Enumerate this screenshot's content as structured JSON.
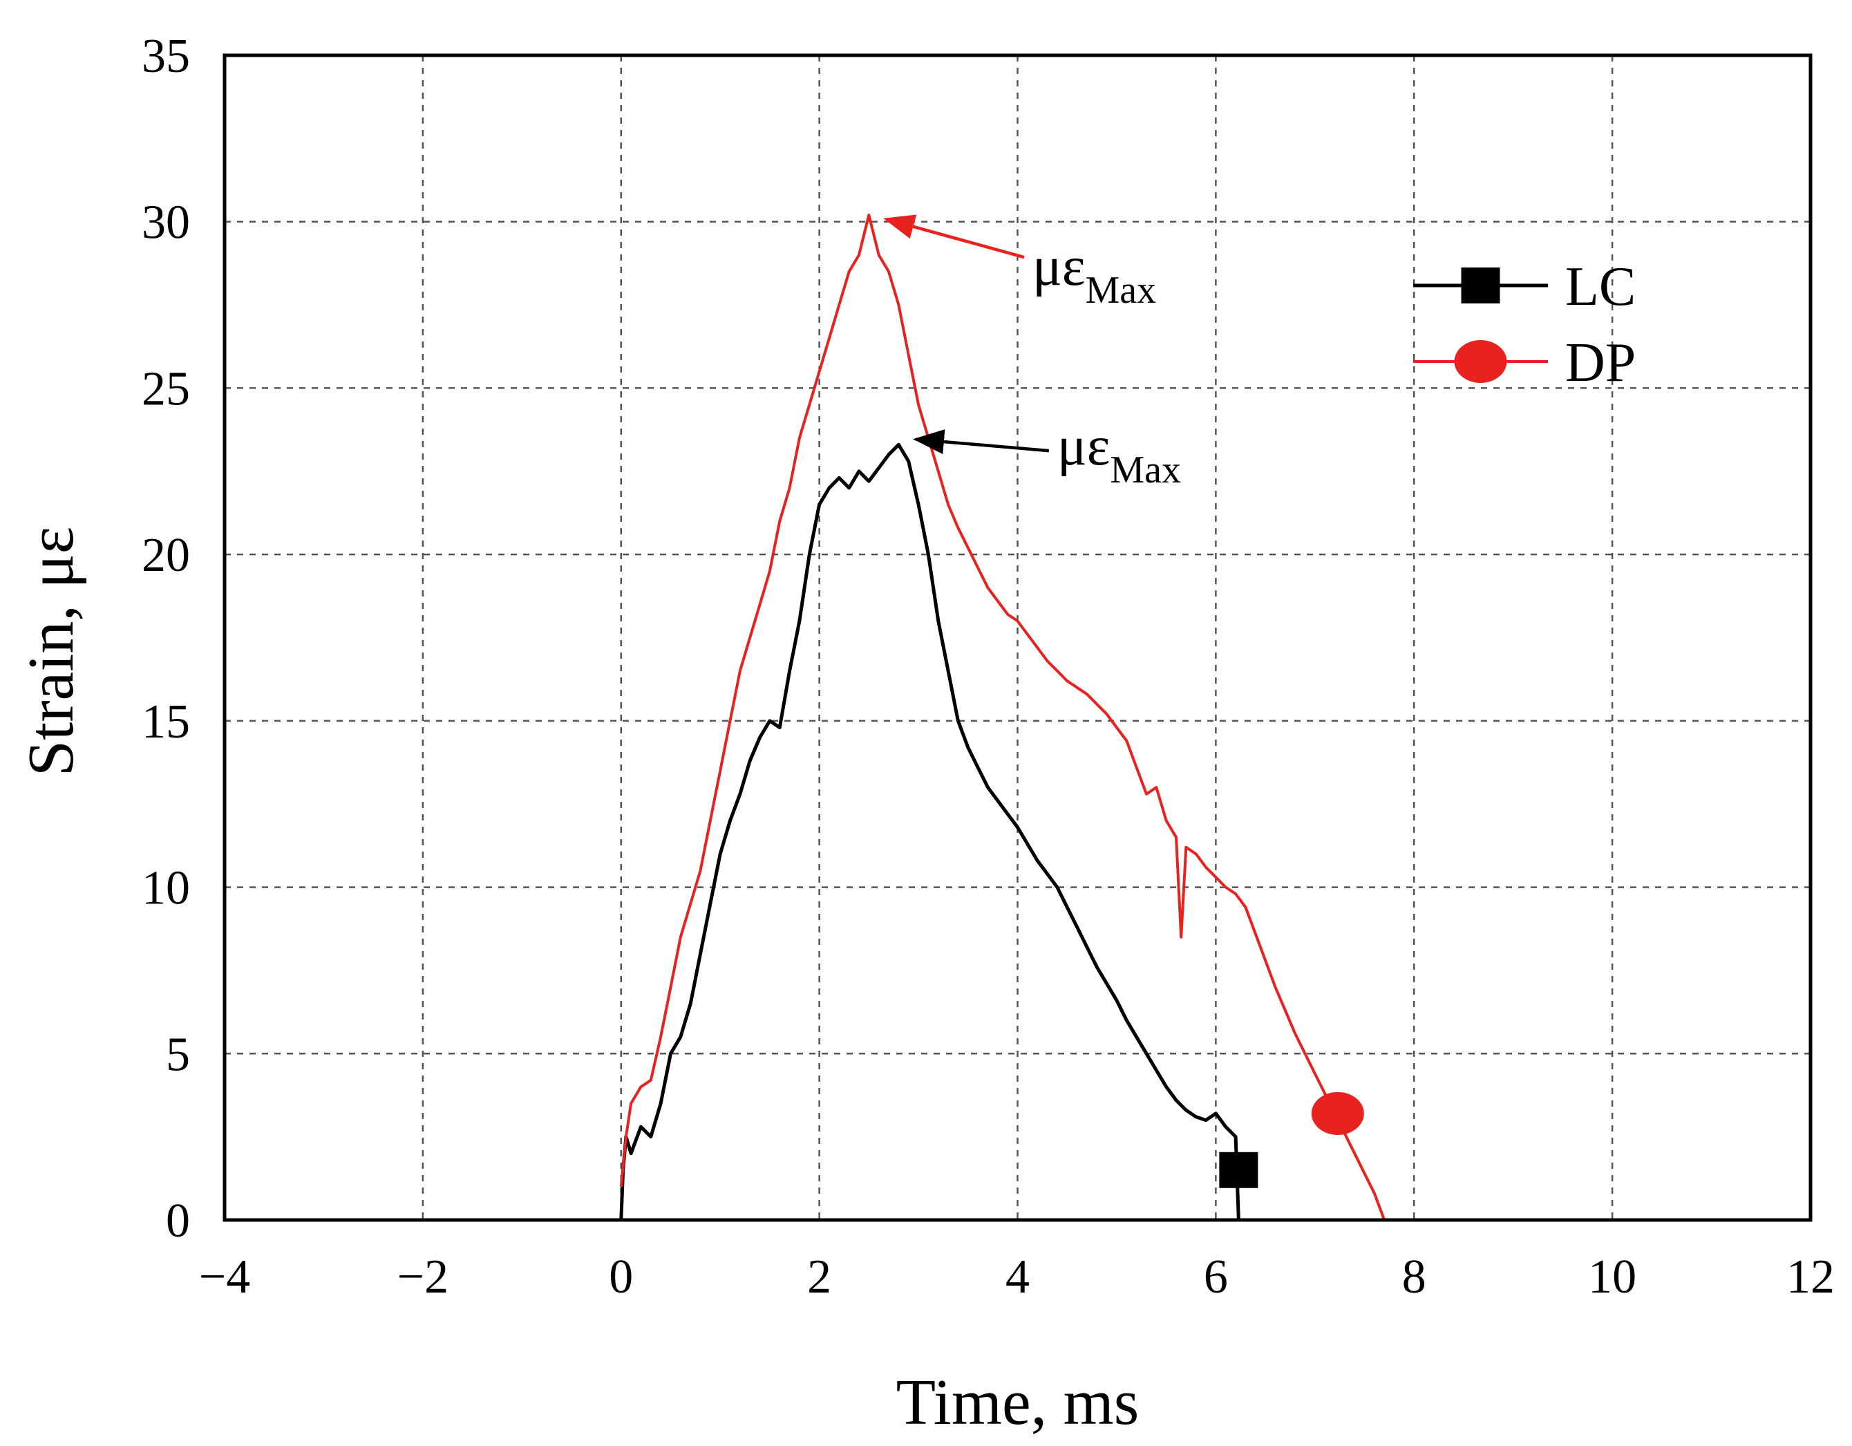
{
  "chart_data": {
    "type": "line",
    "title": "",
    "xlabel": "Time, ms",
    "ylabel": "Strain, με",
    "xlim": [
      -4,
      12
    ],
    "ylim": [
      0,
      35
    ],
    "xticks": [
      -4,
      -2,
      0,
      2,
      4,
      6,
      8,
      10,
      12
    ],
    "yticks": [
      0,
      5,
      10,
      15,
      20,
      25,
      30,
      35
    ],
    "xtick_labels": [
      "−4",
      "−2",
      "0",
      "2",
      "4",
      "6",
      "8",
      "10",
      "12"
    ],
    "ytick_labels": [
      "0",
      "5",
      "10",
      "15",
      "20",
      "25",
      "30",
      "35"
    ],
    "grid": true,
    "legend_position": "top-right",
    "series": [
      {
        "name": "LC",
        "color": "#000000",
        "marker": "square",
        "marker_point": [
          6.23,
          1.5
        ],
        "x": [
          0.0,
          0.02,
          0.05,
          0.1,
          0.2,
          0.3,
          0.4,
          0.5,
          0.6,
          0.7,
          0.8,
          0.9,
          1.0,
          1.1,
          1.2,
          1.3,
          1.4,
          1.5,
          1.6,
          1.7,
          1.8,
          1.9,
          2.0,
          2.1,
          2.2,
          2.3,
          2.4,
          2.5,
          2.6,
          2.7,
          2.8,
          2.9,
          3.0,
          3.1,
          3.2,
          3.3,
          3.4,
          3.5,
          3.6,
          3.7,
          3.8,
          3.9,
          4.0,
          4.1,
          4.2,
          4.3,
          4.4,
          4.5,
          4.6,
          4.7,
          4.8,
          4.9,
          5.0,
          5.1,
          5.2,
          5.3,
          5.4,
          5.5,
          5.6,
          5.7,
          5.8,
          5.9,
          6.0,
          6.1,
          6.2,
          6.23
        ],
        "y": [
          0.0,
          1.5,
          2.5,
          2.0,
          2.8,
          2.5,
          3.5,
          5.0,
          5.5,
          6.5,
          8.0,
          9.5,
          11.0,
          12.0,
          12.8,
          13.8,
          14.5,
          15.0,
          14.8,
          16.5,
          18.0,
          20.0,
          21.5,
          22.0,
          22.3,
          22.0,
          22.5,
          22.2,
          22.6,
          23.0,
          23.3,
          22.8,
          21.5,
          20.0,
          18.0,
          16.5,
          15.0,
          14.2,
          13.6,
          13.0,
          12.6,
          12.2,
          11.8,
          11.3,
          10.8,
          10.4,
          10.0,
          9.4,
          8.8,
          8.2,
          7.6,
          7.1,
          6.6,
          6.0,
          5.5,
          5.0,
          4.5,
          4.0,
          3.6,
          3.3,
          3.1,
          3.0,
          3.2,
          2.8,
          2.5,
          0.0
        ]
      },
      {
        "name": "DP",
        "color": "#e8221e",
        "marker": "circle",
        "marker_point": [
          7.23,
          3.2
        ],
        "x": [
          0.0,
          0.05,
          0.1,
          0.2,
          0.3,
          0.4,
          0.5,
          0.6,
          0.7,
          0.8,
          0.9,
          1.0,
          1.1,
          1.2,
          1.3,
          1.4,
          1.5,
          1.6,
          1.7,
          1.8,
          1.9,
          2.0,
          2.1,
          2.2,
          2.3,
          2.4,
          2.5,
          2.6,
          2.7,
          2.8,
          2.9,
          3.0,
          3.1,
          3.2,
          3.3,
          3.4,
          3.5,
          3.6,
          3.7,
          3.8,
          3.9,
          4.0,
          4.1,
          4.2,
          4.3,
          4.4,
          4.5,
          4.6,
          4.7,
          4.8,
          4.9,
          5.0,
          5.1,
          5.2,
          5.3,
          5.4,
          5.5,
          5.6,
          5.65,
          5.7,
          5.8,
          5.9,
          6.0,
          6.1,
          6.2,
          6.3,
          6.4,
          6.5,
          6.6,
          6.7,
          6.8,
          6.9,
          7.0,
          7.1,
          7.2,
          7.3,
          7.4,
          7.5,
          7.6,
          7.7
        ],
        "y": [
          1.0,
          2.5,
          3.5,
          4.0,
          4.2,
          5.5,
          7.0,
          8.5,
          9.5,
          10.5,
          12.0,
          13.5,
          15.0,
          16.5,
          17.5,
          18.5,
          19.5,
          21.0,
          22.0,
          23.5,
          24.5,
          25.5,
          26.5,
          27.5,
          28.5,
          29.0,
          30.2,
          29.0,
          28.5,
          27.5,
          26.0,
          24.5,
          23.5,
          22.5,
          21.5,
          20.8,
          20.2,
          19.6,
          19.0,
          18.6,
          18.2,
          18.0,
          17.6,
          17.2,
          16.8,
          16.5,
          16.2,
          16.0,
          15.8,
          15.5,
          15.2,
          14.8,
          14.4,
          13.6,
          12.8,
          13.0,
          12.0,
          11.5,
          8.5,
          11.2,
          11.0,
          10.6,
          10.3,
          10.0,
          9.8,
          9.4,
          8.6,
          7.8,
          7.0,
          6.3,
          5.6,
          5.0,
          4.4,
          3.8,
          3.2,
          2.6,
          2.0,
          1.4,
          0.8,
          0.0
        ]
      }
    ],
    "annotations": [
      {
        "text": "με",
        "subscript": "Max",
        "color": "#e8221e",
        "target": [
          2.55,
          30.2
        ],
        "label_at": [
          4.15,
          28.1
        ]
      },
      {
        "text": "με",
        "subscript": "Max",
        "color": "#000000",
        "target": [
          2.85,
          23.5
        ],
        "label_at": [
          4.4,
          22.7
        ]
      }
    ]
  }
}
